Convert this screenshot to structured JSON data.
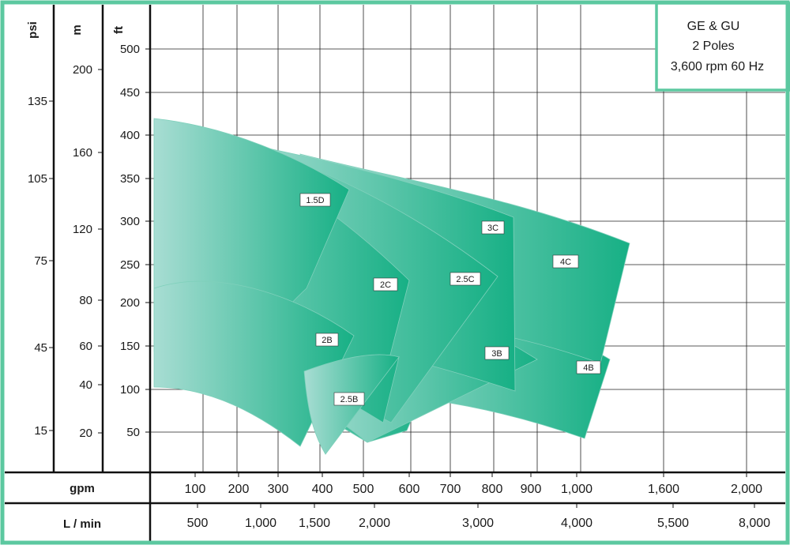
{
  "chart_data": {
    "type": "area",
    "legend": {
      "lines": [
        "GE & GU",
        "2 Poles",
        "3,600 rpm 60 Hz"
      ],
      "placement": "top-right"
    },
    "axes": {
      "psi": {
        "label": "psi",
        "ticks": [
          "135",
          "105",
          "75",
          "45",
          "15"
        ]
      },
      "m": {
        "label": "m",
        "ticks": [
          "200",
          "160",
          "120",
          "80",
          "60",
          "40",
          "20"
        ]
      },
      "ft": {
        "label": "ft",
        "ticks": [
          "500",
          "450",
          "400",
          "350",
          "300",
          "250",
          "200",
          "150",
          "100",
          "50"
        ]
      },
      "gpm": {
        "label": "gpm",
        "ticks": [
          "100",
          "200",
          "300",
          "400",
          "500",
          "600",
          "700",
          "800",
          "900",
          "1,000",
          "1,600",
          "2,000"
        ]
      },
      "lmin": {
        "label": "L / min",
        "ticks": [
          "500",
          "1,000",
          "1,500",
          "2,000",
          "3,000",
          "4,000",
          "5,500",
          "8,000"
        ]
      }
    },
    "series": [
      {
        "name": "1.5D",
        "x_gpm": [
          0,
          460
        ],
        "head_ft": [
          420,
          100
        ]
      },
      {
        "name": "2B",
        "x_gpm": [
          0,
          460
        ],
        "head_ft": [
          220,
          20
        ]
      },
      {
        "name": "2C",
        "x_gpm": [
          0,
          560
        ],
        "head_ft": [
          380,
          40
        ]
      },
      {
        "name": "2.5B",
        "x_gpm": [
          0,
          560
        ],
        "head_ft": [
          200,
          20
        ]
      },
      {
        "name": "2.5C",
        "x_gpm": [
          0,
          760
        ],
        "head_ft": [
          370,
          60
        ]
      },
      {
        "name": "3C",
        "x_gpm": [
          0,
          880
        ],
        "head_ft": [
          330,
          100
        ]
      },
      {
        "name": "3B",
        "x_gpm": [
          0,
          900
        ],
        "head_ft": [
          170,
          40
        ]
      },
      {
        "name": "4C",
        "x_gpm": [
          0,
          1300
        ],
        "head_ft": [
          300,
          130
        ]
      },
      {
        "name": "4B",
        "x_gpm": [
          0,
          1100
        ],
        "head_ft": [
          170,
          40
        ]
      }
    ],
    "colors": {
      "frame": "#5cc8a0",
      "curve_light": "#a8ddd3",
      "curve_dark": "#17b085",
      "green_tick": "#29b38a",
      "black_tick": "#1a1a1a",
      "grid": "#222222"
    },
    "grid": true
  }
}
